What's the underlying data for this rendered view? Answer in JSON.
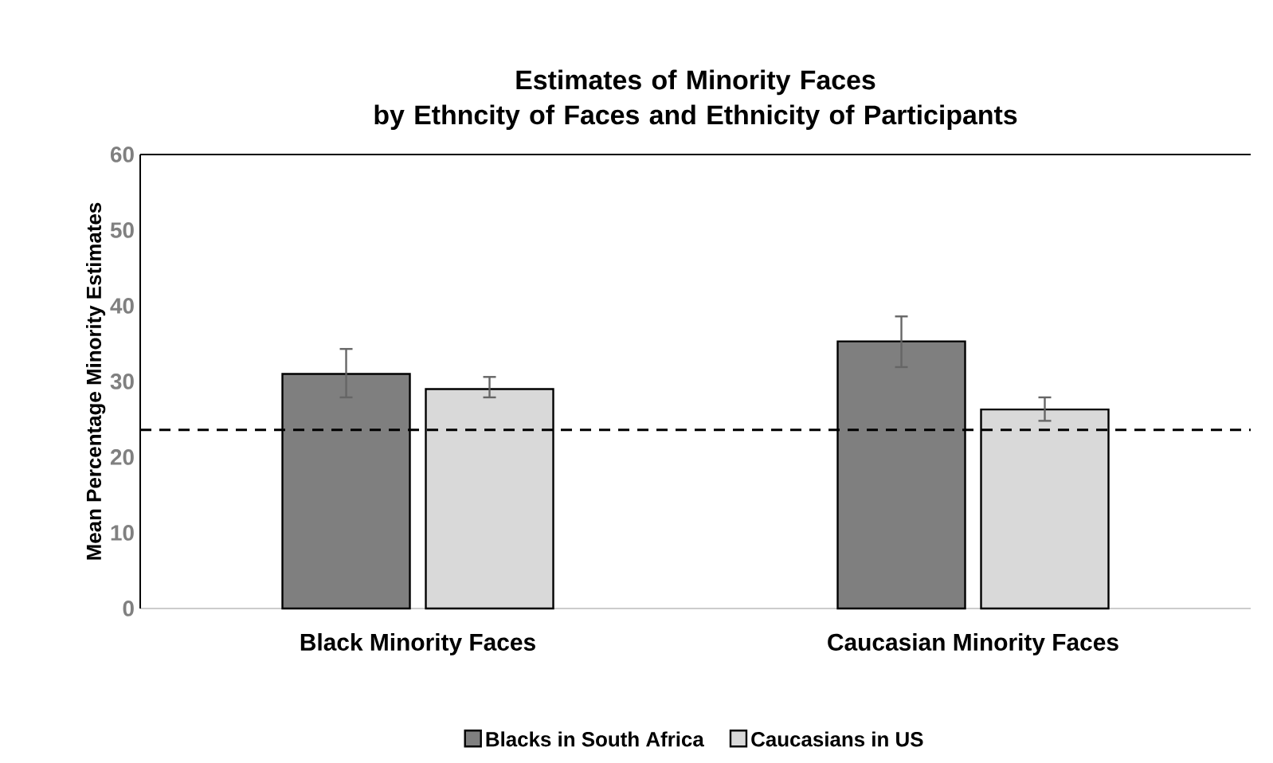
{
  "chart_data": {
    "type": "bar",
    "title": "Estimates of Minority Faces\nby Ethncity of Faces and Ethnicity of Participants",
    "ylabel": "Mean Percentage Minority Estimates",
    "categories": [
      "Black Minority Faces",
      "Caucasian Minority Faces"
    ],
    "series": [
      {
        "name": "Blacks in South Africa",
        "color": "#7f7f7f",
        "values": [
          31.0,
          35.3
        ],
        "errors": [
          [
            27.9,
            34.3
          ],
          [
            31.9,
            38.6
          ]
        ]
      },
      {
        "name": "Caucasians in US",
        "color": "#d9d9d9",
        "values": [
          29.0,
          26.3
        ],
        "errors": [
          [
            27.9,
            30.6
          ],
          [
            24.8,
            27.9
          ]
        ]
      }
    ],
    "ylim": [
      0,
      60
    ],
    "yticks": [
      0,
      10,
      20,
      30,
      40,
      50,
      60
    ],
    "grid": false,
    "legend": "bottom",
    "ref_lines": [
      {
        "axis": "y",
        "value": 23.6,
        "line_style": "dashed",
        "color": "#000000"
      }
    ]
  }
}
